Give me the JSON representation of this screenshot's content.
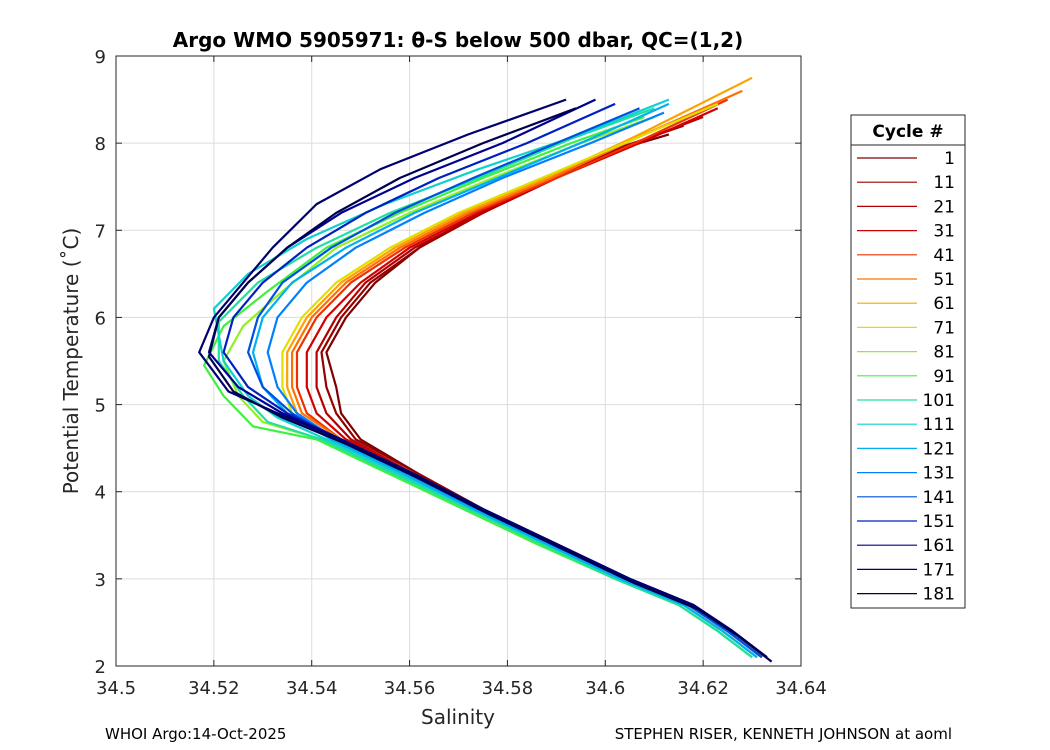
{
  "chart_data": {
    "type": "line",
    "title": "Argo WMO 5905971: θ-S below 500 dbar,  QC=(1,2)",
    "xlabel": "Salinity",
    "ylabel": "Potential Temperature (˚C)",
    "xlim": [
      34.5,
      34.64
    ],
    "ylim": [
      2,
      9
    ],
    "xticks": [
      34.5,
      34.52,
      34.54,
      34.56,
      34.58,
      34.6,
      34.62,
      34.64
    ],
    "xtick_labels": [
      "34.5",
      "34.52",
      "34.54",
      "34.56",
      "34.58",
      "34.6",
      "34.62",
      "34.64"
    ],
    "yticks": [
      2,
      3,
      4,
      5,
      6,
      7,
      8,
      9
    ],
    "ytick_labels": [
      "2",
      "3",
      "4",
      "5",
      "6",
      "7",
      "8",
      "9"
    ],
    "grid": true,
    "legend_title": "Cycle #",
    "legend_position": "right",
    "series": [
      {
        "name": "1",
        "color": "#800000",
        "x": [
          34.633,
          34.626,
          34.618,
          34.605,
          34.59,
          34.575,
          34.562,
          34.55,
          34.546,
          34.545,
          34.543,
          34.547,
          34.553,
          34.562,
          34.574,
          34.588,
          34.601,
          34.613
        ],
        "y": [
          2.1,
          2.4,
          2.7,
          3.0,
          3.4,
          3.8,
          4.2,
          4.6,
          4.9,
          5.2,
          5.6,
          6.0,
          6.4,
          6.8,
          7.2,
          7.6,
          7.9,
          8.1
        ]
      },
      {
        "name": "11",
        "color": "#960000",
        "x": [
          34.633,
          34.626,
          34.618,
          34.605,
          34.59,
          34.575,
          34.562,
          34.549,
          34.545,
          34.543,
          34.542,
          34.546,
          34.552,
          34.562,
          34.575,
          34.589,
          34.603,
          34.616
        ],
        "y": [
          2.1,
          2.4,
          2.7,
          3.0,
          3.4,
          3.8,
          4.2,
          4.6,
          4.9,
          5.2,
          5.6,
          6.0,
          6.4,
          6.8,
          7.2,
          7.6,
          7.95,
          8.2
        ]
      },
      {
        "name": "21",
        "color": "#b40000",
        "x": [
          34.632,
          34.625,
          34.617,
          34.604,
          34.589,
          34.574,
          34.561,
          34.548,
          34.543,
          34.541,
          34.541,
          34.545,
          34.551,
          34.561,
          34.575,
          34.59,
          34.606,
          34.62
        ],
        "y": [
          2.1,
          2.4,
          2.7,
          3.0,
          3.4,
          3.8,
          4.2,
          4.6,
          4.9,
          5.2,
          5.6,
          6.0,
          6.4,
          6.8,
          7.2,
          7.6,
          8.0,
          8.3
        ]
      },
      {
        "name": "31",
        "color": "#d20000",
        "x": [
          34.632,
          34.625,
          34.617,
          34.604,
          34.589,
          34.574,
          34.561,
          34.547,
          34.541,
          34.539,
          34.539,
          34.543,
          34.55,
          34.56,
          34.574,
          34.59,
          34.607,
          34.623
        ],
        "y": [
          2.1,
          2.4,
          2.7,
          3.0,
          3.4,
          3.8,
          4.2,
          4.6,
          4.9,
          5.2,
          5.6,
          6.0,
          6.4,
          6.8,
          7.2,
          7.6,
          8.0,
          8.4
        ]
      },
      {
        "name": "41",
        "color": "#f03000",
        "x": [
          34.632,
          34.625,
          34.617,
          34.604,
          34.589,
          34.574,
          34.56,
          34.546,
          34.539,
          34.537,
          34.537,
          34.541,
          34.548,
          34.559,
          34.573,
          34.59,
          34.608,
          34.625
        ],
        "y": [
          2.1,
          2.4,
          2.7,
          3.0,
          3.4,
          3.8,
          4.2,
          4.6,
          4.9,
          5.2,
          5.6,
          6.0,
          6.4,
          6.8,
          7.2,
          7.6,
          8.05,
          8.5
        ]
      },
      {
        "name": "51",
        "color": "#ff7000",
        "x": [
          34.632,
          34.625,
          34.617,
          34.604,
          34.589,
          34.574,
          34.56,
          34.546,
          34.538,
          34.536,
          34.536,
          34.54,
          34.547,
          34.558,
          34.572,
          34.589,
          34.608,
          34.628
        ],
        "y": [
          2.1,
          2.4,
          2.7,
          3.0,
          3.4,
          3.8,
          4.2,
          4.6,
          4.9,
          5.2,
          5.6,
          6.0,
          6.4,
          6.8,
          7.2,
          7.6,
          8.1,
          8.6
        ]
      },
      {
        "name": "61",
        "color": "#ffa000",
        "x": [
          34.631,
          34.624,
          34.616,
          34.603,
          34.588,
          34.573,
          34.559,
          34.545,
          34.537,
          34.535,
          34.535,
          34.539,
          34.546,
          34.557,
          34.571,
          34.588,
          34.607,
          34.63
        ],
        "y": [
          2.1,
          2.4,
          2.7,
          3.0,
          3.4,
          3.8,
          4.2,
          4.6,
          4.9,
          5.2,
          5.6,
          6.0,
          6.4,
          6.8,
          7.2,
          7.6,
          8.1,
          8.75
        ]
      },
      {
        "name": "71",
        "color": "#e0e000",
        "x": [
          34.631,
          34.624,
          34.616,
          34.603,
          34.588,
          34.573,
          34.559,
          34.544,
          34.536,
          34.534,
          34.534,
          34.538,
          34.545,
          34.556,
          34.57,
          34.587,
          34.606,
          34.623
        ],
        "y": [
          2.1,
          2.4,
          2.7,
          3.0,
          3.4,
          3.8,
          4.2,
          4.6,
          4.9,
          5.2,
          5.6,
          6.0,
          6.4,
          6.8,
          7.2,
          7.6,
          8.05,
          8.45
        ]
      },
      {
        "name": "81",
        "color": "#90f020",
        "x": [
          34.63,
          34.623,
          34.615,
          34.602,
          34.587,
          34.572,
          34.557,
          34.542,
          34.53,
          34.525,
          34.522,
          34.526,
          34.534,
          34.545,
          34.56,
          34.577,
          34.595,
          34.61
        ],
        "y": [
          2.1,
          2.4,
          2.7,
          3.0,
          3.4,
          3.8,
          4.2,
          4.6,
          4.8,
          5.1,
          5.5,
          5.9,
          6.3,
          6.8,
          7.2,
          7.6,
          8.0,
          8.3
        ]
      },
      {
        "name": "91",
        "color": "#40f040",
        "x": [
          34.63,
          34.623,
          34.615,
          34.602,
          34.586,
          34.571,
          34.556,
          34.541,
          34.528,
          34.522,
          34.518,
          34.522,
          34.531,
          34.543,
          34.558,
          34.575,
          34.593,
          34.608
        ],
        "y": [
          2.1,
          2.4,
          2.7,
          3.0,
          3.4,
          3.8,
          4.2,
          4.6,
          4.75,
          5.1,
          5.45,
          5.9,
          6.3,
          6.8,
          7.2,
          7.6,
          8.0,
          8.3
        ]
      },
      {
        "name": "101",
        "color": "#20e0a0",
        "x": [
          34.63,
          34.623,
          34.615,
          34.602,
          34.587,
          34.572,
          34.557,
          34.542,
          34.531,
          34.526,
          34.521,
          34.521,
          34.529,
          34.541,
          34.556,
          34.574,
          34.593,
          34.61
        ],
        "y": [
          2.1,
          2.4,
          2.7,
          3.0,
          3.4,
          3.8,
          4.2,
          4.6,
          4.8,
          5.1,
          5.5,
          5.95,
          6.4,
          6.8,
          7.2,
          7.6,
          8.05,
          8.4
        ]
      },
      {
        "name": "111",
        "color": "#10d0d0",
        "x": [
          34.631,
          34.624,
          34.616,
          34.603,
          34.588,
          34.573,
          34.558,
          34.543,
          34.533,
          34.527,
          34.522,
          34.52,
          34.527,
          34.539,
          34.555,
          34.574,
          34.595,
          34.613
        ],
        "y": [
          2.1,
          2.4,
          2.7,
          3.0,
          3.4,
          3.8,
          4.2,
          4.6,
          4.85,
          5.1,
          5.5,
          6.1,
          6.5,
          6.9,
          7.3,
          7.7,
          8.1,
          8.5
        ]
      },
      {
        "name": "121",
        "color": "#00b0f0",
        "x": [
          34.631,
          34.624,
          34.616,
          34.603,
          34.588,
          34.573,
          34.559,
          34.544,
          34.535,
          34.53,
          34.528,
          34.53,
          34.536,
          34.547,
          34.561,
          34.578,
          34.597,
          34.613
        ],
        "y": [
          2.1,
          2.4,
          2.7,
          3.0,
          3.4,
          3.8,
          4.2,
          4.6,
          4.9,
          5.2,
          5.6,
          6.0,
          6.4,
          6.8,
          7.2,
          7.6,
          8.05,
          8.45
        ]
      },
      {
        "name": "131",
        "color": "#0080ff",
        "x": [
          34.632,
          34.625,
          34.617,
          34.604,
          34.589,
          34.574,
          34.56,
          34.545,
          34.537,
          34.533,
          34.531,
          34.533,
          34.539,
          34.549,
          34.563,
          34.579,
          34.597,
          34.612
        ],
        "y": [
          2.1,
          2.4,
          2.7,
          3.0,
          3.4,
          3.8,
          4.2,
          4.6,
          4.9,
          5.2,
          5.6,
          6.0,
          6.4,
          6.8,
          7.2,
          7.6,
          8.0,
          8.35
        ]
      },
      {
        "name": "141",
        "color": "#0050e0",
        "x": [
          34.632,
          34.625,
          34.617,
          34.604,
          34.589,
          34.574,
          34.56,
          34.545,
          34.536,
          34.53,
          34.527,
          34.529,
          34.534,
          34.544,
          34.557,
          34.573,
          34.59,
          34.607
        ],
        "y": [
          2.1,
          2.4,
          2.7,
          3.0,
          3.4,
          3.8,
          4.2,
          4.6,
          4.9,
          5.2,
          5.6,
          6.0,
          6.4,
          6.8,
          7.2,
          7.6,
          8.0,
          8.4
        ]
      },
      {
        "name": "151",
        "color": "#0020c0",
        "x": [
          34.633,
          34.626,
          34.618,
          34.605,
          34.59,
          34.575,
          34.561,
          34.546,
          34.535,
          34.527,
          34.522,
          34.524,
          34.53,
          34.539,
          34.551,
          34.566,
          34.584,
          34.602
        ],
        "y": [
          2.1,
          2.4,
          2.7,
          3.0,
          3.4,
          3.8,
          4.2,
          4.6,
          4.9,
          5.2,
          5.6,
          6.0,
          6.4,
          6.8,
          7.2,
          7.6,
          8.0,
          8.45
        ]
      },
      {
        "name": "161",
        "color": "#000090",
        "x": [
          34.633,
          34.626,
          34.618,
          34.605,
          34.59,
          34.575,
          34.561,
          34.546,
          34.534,
          34.525,
          34.519,
          34.521,
          34.527,
          34.535,
          34.546,
          34.561,
          34.579,
          34.598
        ],
        "y": [
          2.1,
          2.4,
          2.7,
          3.0,
          3.4,
          3.8,
          4.2,
          4.6,
          4.9,
          5.2,
          5.6,
          6.0,
          6.4,
          6.8,
          7.2,
          7.6,
          8.0,
          8.5
        ]
      },
      {
        "name": "171",
        "color": "#000070",
        "x": [
          34.633,
          34.626,
          34.618,
          34.605,
          34.59,
          34.575,
          34.561,
          34.546,
          34.533,
          34.523,
          34.517,
          34.52,
          34.526,
          34.532,
          34.541,
          34.554,
          34.572,
          34.592
        ],
        "y": [
          2.1,
          2.4,
          2.7,
          3.0,
          3.4,
          3.8,
          4.2,
          4.6,
          4.9,
          5.15,
          5.6,
          6.0,
          6.4,
          6.8,
          7.3,
          7.7,
          8.1,
          8.5
        ]
      },
      {
        "name": "181",
        "color": "#000050",
        "x": [
          34.634,
          34.627,
          34.619,
          34.606,
          34.591,
          34.576,
          34.562,
          34.547,
          34.534,
          34.524,
          34.519,
          34.521,
          34.527,
          34.535,
          34.545,
          34.558,
          34.575,
          34.594
        ],
        "y": [
          2.05,
          2.35,
          2.65,
          2.95,
          3.35,
          3.75,
          4.15,
          4.55,
          4.85,
          5.15,
          5.55,
          6.0,
          6.4,
          6.8,
          7.2,
          7.6,
          8.0,
          8.4
        ]
      }
    ]
  },
  "footer": {
    "left": "WHOI Argo:14-Oct-2025",
    "right": "STEPHEN RISER, KENNETH JOHNSON at aoml"
  }
}
